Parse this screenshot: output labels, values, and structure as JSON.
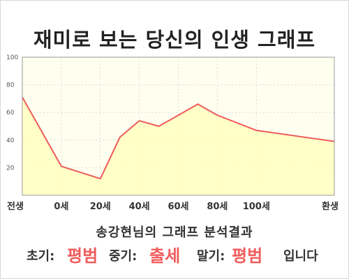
{
  "title": "재미로 보는 당신의 인생 그래프",
  "summary": "송강현님의 그래프 분석결과",
  "result": {
    "early_label": "초기:",
    "early_value": "평범",
    "mid_label": "중기:",
    "mid_value": "출세",
    "late_label": "말기:",
    "late_value": "평범",
    "ending": "입니다"
  },
  "colors": {
    "line": "#ee5c5c",
    "fill": "#ffffc0",
    "plot_bg": "#fffff0",
    "grid": "#d9d9d9",
    "accent": "#f05b5b"
  },
  "chart_data": {
    "type": "area",
    "title": "",
    "xlabel": "",
    "ylabel": "",
    "x_tick_labels": [
      "전생",
      "0세",
      "20세",
      "40세",
      "60세",
      "80세",
      "100세",
      "환생"
    ],
    "y_ticks": [
      20,
      40,
      60,
      80,
      100
    ],
    "ylim": [
      0,
      100
    ],
    "grid": true,
    "series": [
      {
        "points": [
          {
            "x": "전생",
            "y": 71
          },
          {
            "x": "0세",
            "y": 21
          },
          {
            "x": "20세",
            "y": 12
          },
          {
            "x": "30세",
            "y": 42
          },
          {
            "x": "40세",
            "y": 54
          },
          {
            "x": "50세",
            "y": 50
          },
          {
            "x": "60세",
            "y": 58
          },
          {
            "x": "70세",
            "y": 66
          },
          {
            "x": "80세",
            "y": 58
          },
          {
            "x": "100세",
            "y": 47
          },
          {
            "x": "환생",
            "y": 39
          }
        ]
      }
    ]
  }
}
